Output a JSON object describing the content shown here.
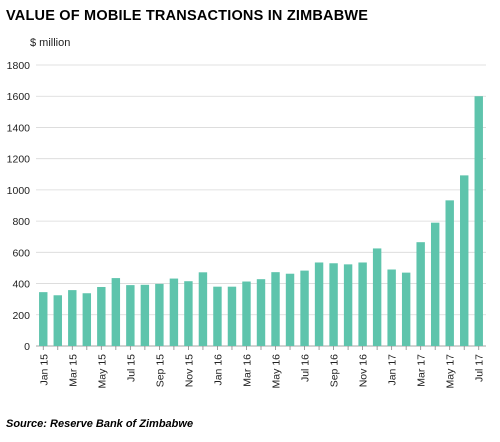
{
  "chart_data": {
    "type": "bar",
    "title": "VALUE OF MOBILE TRANSACTIONS IN ZIMBABWE",
    "unit_label": "$ million",
    "source": "Source: Reserve Bank of Zimbabwe",
    "ylim": [
      0,
      1800
    ],
    "yticks": [
      0,
      200,
      400,
      600,
      800,
      1000,
      1200,
      1400,
      1600,
      1800
    ],
    "categories": [
      "Jan 15",
      "Feb 15",
      "Mar 15",
      "Apr 15",
      "May 15",
      "Jun 15",
      "Jul 15",
      "Aug 15",
      "Sep 15",
      "Oct 15",
      "Nov 15",
      "Dec 15",
      "Jan 16",
      "Feb 16",
      "Mar 16",
      "Apr 16",
      "May 16",
      "Jun 16",
      "Jul 16",
      "Aug 16",
      "Sep 16",
      "Oct 16",
      "Nov 16",
      "Dec 16",
      "Jan 17",
      "Feb 17",
      "Mar 17",
      "Apr 17",
      "May 17",
      "Jun 17",
      "Jul 17"
    ],
    "xtick_labels": [
      "Jan 15",
      "",
      "Mar 15",
      "",
      "May 15",
      "",
      "Jul 15",
      "",
      "Sep 15",
      "",
      "Nov 15",
      "",
      "Jan 16",
      "",
      "Mar 16",
      "",
      "May 16",
      "",
      "Jul 16",
      "",
      "Sep 16",
      "",
      "Nov 16",
      "",
      "Jan 17",
      "",
      "Mar 17",
      "",
      "May 17",
      "",
      "Jul 17"
    ],
    "values": [
      345,
      325,
      358,
      338,
      378,
      435,
      390,
      392,
      398,
      432,
      415,
      472,
      380,
      380,
      413,
      428,
      473,
      463,
      483,
      535,
      530,
      523,
      535,
      625,
      490,
      470,
      665,
      790,
      933,
      1093,
      1600
    ],
    "bar_color": "#5ec4ac",
    "grid": "horizontal",
    "legend": "none"
  }
}
